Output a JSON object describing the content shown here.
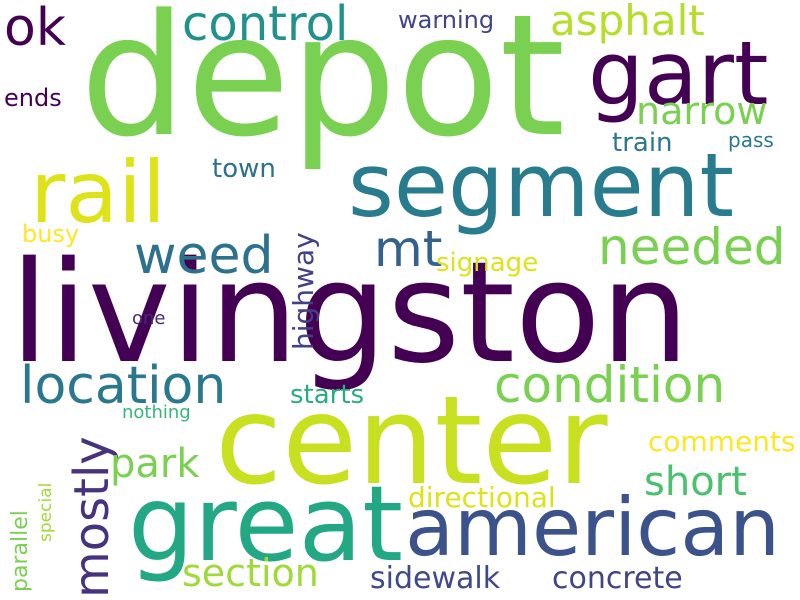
{
  "background": "#ffffff",
  "palette": {
    "dark_purple": "#440154",
    "indigo": "#3b528b",
    "teal": "#21918c",
    "green": "#5ec962",
    "lime": "#8fd744",
    "yellow": "#c8e020"
  },
  "words": [
    {
      "key": "livingston",
      "text": "livingston",
      "color": "#440154"
    },
    {
      "key": "depot",
      "text": "depot",
      "color": "#7ad151"
    },
    {
      "key": "center",
      "text": "center",
      "color": "#c8e020"
    },
    {
      "key": "segment",
      "text": "segment",
      "color": "#287c8e"
    },
    {
      "key": "great",
      "text": "great",
      "color": "#22a884"
    },
    {
      "key": "american",
      "text": "american",
      "color": "#3b528b"
    },
    {
      "key": "rail",
      "text": "rail",
      "color": "#dde318"
    },
    {
      "key": "gart",
      "text": "gart",
      "color": "#440154"
    },
    {
      "key": "location",
      "text": "location",
      "color": "#2a788e"
    },
    {
      "key": "condition",
      "text": "condition",
      "color": "#7ad151"
    },
    {
      "key": "mostly",
      "text": "mostly",
      "color": "#46327e"
    },
    {
      "key": "control",
      "text": "control",
      "color": "#21918c"
    },
    {
      "key": "weed",
      "text": "weed",
      "color": "#2c728e"
    },
    {
      "key": "needed",
      "text": "needed",
      "color": "#7ad151"
    },
    {
      "key": "mt",
      "text": "mt",
      "color": "#33638d"
    },
    {
      "key": "ok",
      "text": "ok",
      "color": "#440154"
    },
    {
      "key": "asphalt",
      "text": "asphalt",
      "color": "#b5de2b"
    },
    {
      "key": "narrow",
      "text": "narrow",
      "color": "#7ad151"
    },
    {
      "key": "park",
      "text": "park",
      "color": "#7ad151"
    },
    {
      "key": "short",
      "text": "short",
      "color": "#4ac16d"
    },
    {
      "key": "section",
      "text": "section",
      "color": "#9fda3a"
    },
    {
      "key": "sidewalk",
      "text": "sidewalk",
      "color": "#3e4a89"
    },
    {
      "key": "concrete",
      "text": "concrete",
      "color": "#414487"
    },
    {
      "key": "directional",
      "text": "directional",
      "color": "#dde318"
    },
    {
      "key": "comments",
      "text": "comments",
      "color": "#fde725"
    },
    {
      "key": "highway",
      "text": "highway",
      "color": "#424086"
    },
    {
      "key": "signage",
      "text": "signage",
      "color": "#dde318"
    },
    {
      "key": "starts",
      "text": "starts",
      "color": "#27ad81"
    },
    {
      "key": "town",
      "text": "town",
      "color": "#2c728e"
    },
    {
      "key": "train",
      "text": "train",
      "color": "#2a788e"
    },
    {
      "key": "warning",
      "text": "warning",
      "color": "#414487"
    },
    {
      "key": "busy",
      "text": "busy",
      "color": "#fde725"
    },
    {
      "key": "ends",
      "text": "ends",
      "color": "#440154"
    },
    {
      "key": "pass",
      "text": "pass",
      "color": "#2a788e"
    },
    {
      "key": "one",
      "text": "one",
      "color": "#482878"
    },
    {
      "key": "nothing",
      "text": "nothing",
      "color": "#35b779"
    },
    {
      "key": "parallel",
      "text": "parallel",
      "color": "#7ad151"
    },
    {
      "key": "special",
      "text": "special",
      "color": "#a0da39"
    }
  ]
}
